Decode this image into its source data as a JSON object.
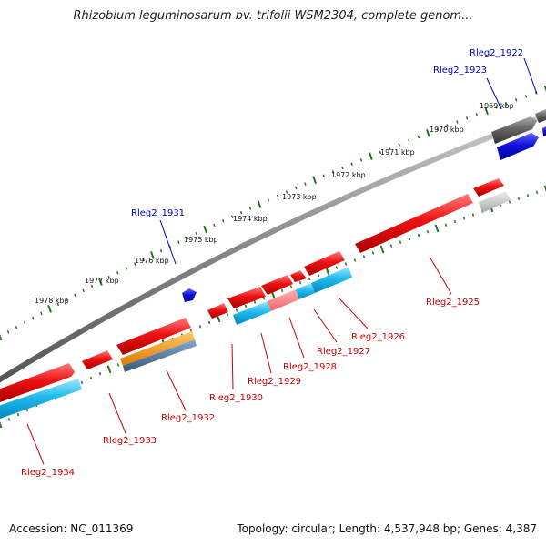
{
  "title": "Rhizobium leguminosarum bv. trifolii WSM2304, complete genom...",
  "footer": {
    "accession": "Accession: NC_011369",
    "summary": "Topology: circular; Length: 4,537,948 bp; Genes: 4,387"
  },
  "ruler_labels": [
    "1969 kbp",
    "1970 kbp",
    "1971 kbp",
    "1972 kbp",
    "1973 kbp",
    "1974 kbp",
    "1975 kbp",
    "1976 kbp",
    "1977 kbp",
    "1978 kbp"
  ],
  "genes_plus": [
    "Rleg2_1922",
    "Rleg2_1923",
    "Rleg2_1931"
  ],
  "genes_minus": [
    "Rleg2_1925",
    "Rleg2_1926",
    "Rleg2_1927",
    "Rleg2_1928",
    "Rleg2_1929",
    "Rleg2_1930",
    "Rleg2_1932",
    "Rleg2_1933",
    "Rleg2_1934"
  ],
  "colors": {
    "plus_label": "#0000cc",
    "minus_label": "#cc0000",
    "cds_red": "#ee1111",
    "cds_cyan": "#22bbee",
    "cds_blue": "#1111dd",
    "cds_orange": "#ee8811",
    "cds_grey": "#777777",
    "ruler_green": "#227722",
    "backbone": "#888888"
  }
}
